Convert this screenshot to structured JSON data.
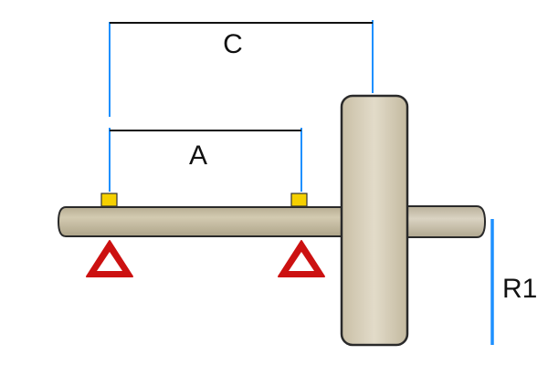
{
  "labels": {
    "dimension_c": "C",
    "dimension_a": "A",
    "radius_r1": "R1"
  },
  "colors": {
    "shaft": "#c2b89d",
    "shaft_edge": "#2a2a2a",
    "wheel": "#d8d0bc",
    "wheel_shade": "#bfb59b",
    "extension_lines": "#1e90ff",
    "dimension_lines": "#111111",
    "bearing_blocks": "#f5d000",
    "supports": "#cc1111"
  },
  "icons": {
    "supports": "warning-triangle-icon"
  }
}
